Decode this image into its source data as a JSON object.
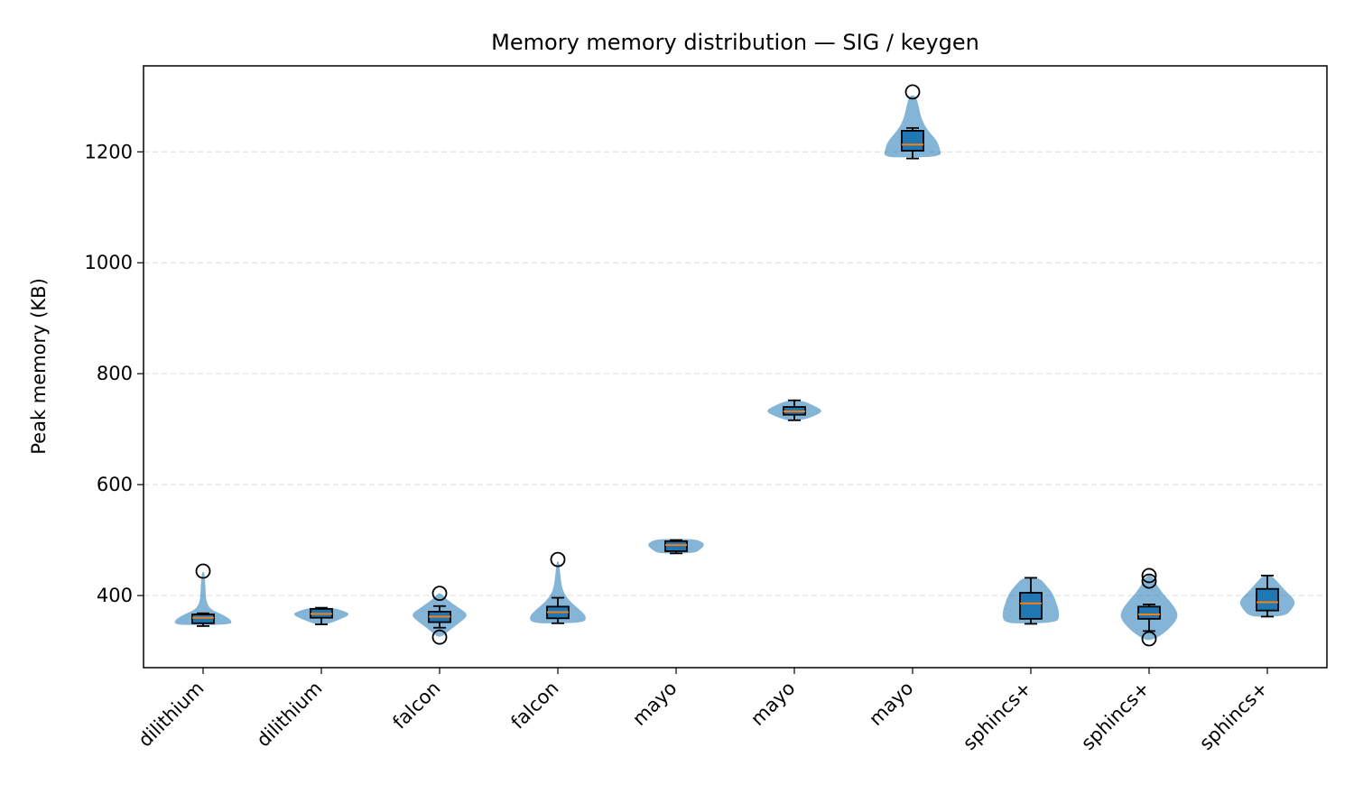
{
  "chart_data": {
    "type": "violin",
    "title": "Memory memory distribution — SIG / keygen",
    "xlabel": "",
    "ylabel": "Peak memory (KB)",
    "ylim": [
      270,
      1355
    ],
    "yticks": [
      400,
      600,
      800,
      1000,
      1200
    ],
    "grid": "horizontal dashed",
    "colors": {
      "violin": "#1f77b4",
      "box": "#1f77b4",
      "median": "#ff7f0e"
    },
    "categories": [
      "dilithium",
      "dilithium",
      "falcon",
      "falcon",
      "mayo",
      "mayo",
      "mayo",
      "sphincs+",
      "sphincs+",
      "sphincs+"
    ],
    "distributions": [
      {
        "min": 345,
        "q1": 350,
        "median": 360,
        "q3": 366,
        "max": 368,
        "outliers": [
          444
        ],
        "density": [
          [
            347,
            0.95
          ],
          [
            355,
            1.0
          ],
          [
            365,
            0.7
          ],
          [
            375,
            0.25
          ],
          [
            390,
            0.1
          ],
          [
            420,
            0.08
          ],
          [
            443,
            0.04
          ]
        ]
      },
      {
        "min": 348,
        "q1": 360,
        "median": 367,
        "q3": 376,
        "max": 378,
        "outliers": [],
        "density": [
          [
            348,
            0.2
          ],
          [
            358,
            0.7
          ],
          [
            366,
            1.0
          ],
          [
            372,
            0.8
          ],
          [
            378,
            0.4
          ]
        ]
      },
      {
        "min": 342,
        "q1": 352,
        "median": 362,
        "q3": 371,
        "max": 381,
        "outliers": [
          404,
          325
        ],
        "density": [
          [
            326,
            0.1
          ],
          [
            340,
            0.4
          ],
          [
            355,
            0.8
          ],
          [
            366,
            1.0
          ],
          [
            380,
            0.6
          ],
          [
            395,
            0.2
          ],
          [
            404,
            0.05
          ]
        ]
      },
      {
        "min": 350,
        "q1": 359,
        "median": 370,
        "q3": 380,
        "max": 396,
        "outliers": [
          465
        ],
        "density": [
          [
            350,
            0.9
          ],
          [
            362,
            1.0
          ],
          [
            375,
            0.75
          ],
          [
            390,
            0.4
          ],
          [
            410,
            0.15
          ],
          [
            440,
            0.08
          ],
          [
            462,
            0.04
          ]
        ]
      },
      {
        "min": 476,
        "q1": 480,
        "median": 491,
        "q3": 498,
        "max": 500,
        "outliers": [],
        "density": [
          [
            476,
            0.6
          ],
          [
            483,
            0.85
          ],
          [
            492,
            1.0
          ],
          [
            498,
            0.85
          ],
          [
            502,
            0.6
          ]
        ]
      },
      {
        "min": 716,
        "q1": 726,
        "median": 732,
        "q3": 740,
        "max": 752,
        "outliers": [],
        "density": [
          [
            716,
            0.3
          ],
          [
            725,
            0.75
          ],
          [
            733,
            1.0
          ],
          [
            742,
            0.7
          ],
          [
            752,
            0.25
          ]
        ]
      },
      {
        "min": 1188,
        "q1": 1202,
        "median": 1213,
        "q3": 1238,
        "max": 1243,
        "outliers": [
          1308
        ],
        "density": [
          [
            1190,
            1.0
          ],
          [
            1205,
            0.95
          ],
          [
            1220,
            0.85
          ],
          [
            1240,
            0.5
          ],
          [
            1260,
            0.3
          ],
          [
            1285,
            0.2
          ],
          [
            1302,
            0.1
          ]
        ]
      },
      {
        "min": 349,
        "q1": 358,
        "median": 386,
        "q3": 405,
        "max": 432,
        "outliers": [],
        "density": [
          [
            350,
            0.9
          ],
          [
            365,
            1.0
          ],
          [
            385,
            0.9
          ],
          [
            405,
            0.75
          ],
          [
            420,
            0.5
          ],
          [
            432,
            0.3
          ]
        ]
      },
      {
        "min": 336,
        "q1": 358,
        "median": 366,
        "q3": 380,
        "max": 384,
        "outliers": [
          322,
          426,
          436
        ],
        "density": [
          [
            320,
            0.15
          ],
          [
            335,
            0.6
          ],
          [
            355,
            0.95
          ],
          [
            368,
            1.0
          ],
          [
            385,
            0.8
          ],
          [
            405,
            0.45
          ],
          [
            425,
            0.2
          ],
          [
            437,
            0.08
          ]
        ]
      },
      {
        "min": 362,
        "q1": 373,
        "median": 388,
        "q3": 412,
        "max": 436,
        "outliers": [],
        "density": [
          [
            362,
            0.6
          ],
          [
            375,
            0.85
          ],
          [
            390,
            1.0
          ],
          [
            410,
            0.6
          ],
          [
            425,
            0.35
          ],
          [
            436,
            0.15
          ]
        ]
      }
    ]
  }
}
